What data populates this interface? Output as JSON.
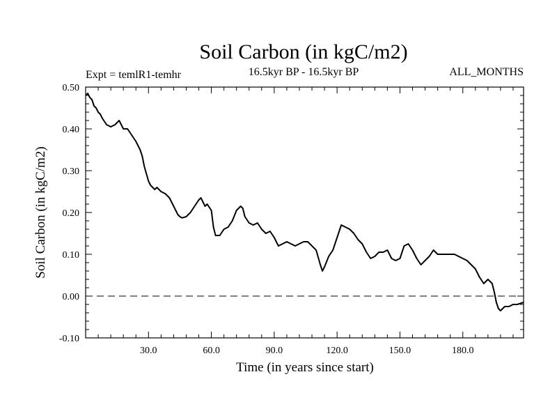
{
  "chart_data": {
    "type": "line",
    "title": "Soil Carbon (in kgC/m2)",
    "subtitle_left": "Expt = temlR1-temhr",
    "subtitle_center": "16.5kyr BP - 16.5kyr BP",
    "subtitle_right": "ALL_MONTHS",
    "xlabel": "Time (in years since start)",
    "ylabel": "Soil Carbon (in kgC/m2)",
    "xlim": [
      0,
      209
    ],
    "ylim": [
      -0.1,
      0.5
    ],
    "x_ticks": [
      30,
      60,
      90,
      120,
      150,
      180
    ],
    "x_tick_labels": [
      "30.0",
      "60.0",
      "90.0",
      "120.0",
      "150.0",
      "180.0"
    ],
    "y_ticks": [
      -0.1,
      0.0,
      0.1,
      0.2,
      0.3,
      0.4,
      0.5
    ],
    "y_tick_labels": [
      "-0.10",
      "0.00",
      "0.10",
      "0.20",
      "0.30",
      "0.40",
      "0.50"
    ],
    "reference_line": {
      "y": 0.0,
      "style": "dashed"
    },
    "series": [
      {
        "name": "Soil Carbon",
        "x": [
          0,
          1,
          2,
          3,
          4,
          5,
          6,
          7,
          8,
          10,
          12,
          14,
          15,
          16,
          17,
          18,
          20,
          22,
          24,
          26,
          27,
          28,
          30,
          31,
          32,
          33,
          34,
          36,
          38,
          40,
          42,
          44,
          45,
          46,
          48,
          50,
          52,
          54,
          55,
          56,
          57,
          58,
          60,
          61,
          62,
          64,
          66,
          68,
          70,
          72,
          74,
          75,
          76,
          78,
          80,
          82,
          84,
          86,
          88,
          90,
          92,
          94,
          96,
          98,
          100,
          102,
          104,
          106,
          108,
          110,
          112,
          113,
          114,
          116,
          118,
          120,
          122,
          124,
          126,
          128,
          130,
          132,
          134,
          136,
          138,
          140,
          142,
          144,
          146,
          148,
          150,
          152,
          154,
          156,
          158,
          160,
          162,
          164,
          166,
          168,
          170,
          172,
          174,
          176,
          178,
          180,
          182,
          184,
          186,
          188,
          190,
          192,
          194,
          195,
          196,
          197,
          198,
          200,
          202,
          204,
          206,
          209
        ],
        "values": [
          0.48,
          0.485,
          0.475,
          0.47,
          0.455,
          0.45,
          0.44,
          0.435,
          0.425,
          0.41,
          0.405,
          0.41,
          0.415,
          0.42,
          0.41,
          0.4,
          0.4,
          0.385,
          0.37,
          0.35,
          0.335,
          0.31,
          0.275,
          0.265,
          0.26,
          0.255,
          0.26,
          0.25,
          0.245,
          0.235,
          0.215,
          0.195,
          0.19,
          0.187,
          0.19,
          0.2,
          0.215,
          0.23,
          0.235,
          0.225,
          0.215,
          0.22,
          0.205,
          0.165,
          0.145,
          0.145,
          0.16,
          0.165,
          0.18,
          0.205,
          0.215,
          0.21,
          0.19,
          0.175,
          0.17,
          0.175,
          0.16,
          0.15,
          0.155,
          0.14,
          0.12,
          0.125,
          0.13,
          0.125,
          0.12,
          0.125,
          0.13,
          0.13,
          0.12,
          0.11,
          0.075,
          0.06,
          0.07,
          0.095,
          0.11,
          0.14,
          0.17,
          0.165,
          0.16,
          0.15,
          0.135,
          0.125,
          0.105,
          0.09,
          0.095,
          0.105,
          0.105,
          0.11,
          0.09,
          0.085,
          0.09,
          0.12,
          0.125,
          0.11,
          0.09,
          0.075,
          0.085,
          0.095,
          0.11,
          0.1,
          0.1,
          0.1,
          0.1,
          0.1,
          0.095,
          0.09,
          0.085,
          0.075,
          0.065,
          0.045,
          0.03,
          0.04,
          0.03,
          0.01,
          -0.015,
          -0.03,
          -0.035,
          -0.025,
          -0.025,
          -0.02,
          -0.02,
          -0.015
        ]
      }
    ]
  }
}
